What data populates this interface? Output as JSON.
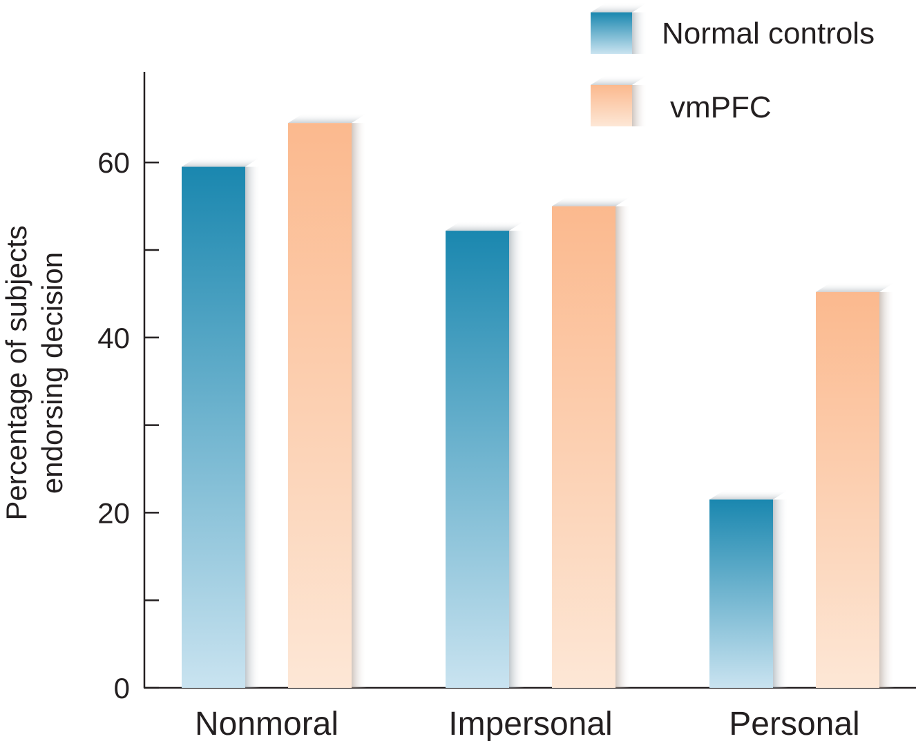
{
  "chart_data": {
    "type": "bar",
    "title": "",
    "xlabel": "",
    "ylabel_lines": [
      "Percentage of subjects",
      "endorsing decision"
    ],
    "ylim": [
      0,
      70
    ],
    "yticks_labeled": [
      0,
      20,
      40,
      60
    ],
    "yticks_minor": [
      10,
      30,
      50
    ],
    "yticks_labels": [
      "0",
      "20",
      "40",
      "60"
    ],
    "grid": false,
    "legend_position": "top-right",
    "categories": [
      "Nonmoral",
      "Impersonal",
      "Personal"
    ],
    "series": [
      {
        "name": "Normal controls",
        "values": [
          59.5,
          52.2,
          21.5
        ],
        "color_top": "#1a87af",
        "color_bottom": "#c9e3f0"
      },
      {
        "name": "vmPFC",
        "values": [
          64.5,
          55.0,
          45.2
        ],
        "color_top": "#fbb98e",
        "color_bottom": "#fde7d6"
      }
    ]
  }
}
